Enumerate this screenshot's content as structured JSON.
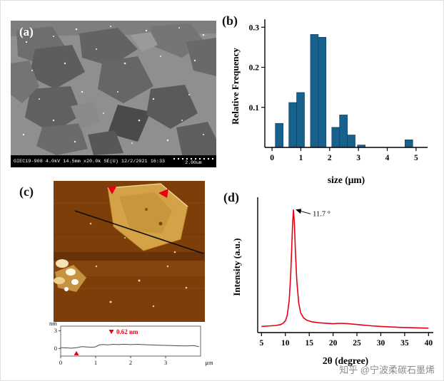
{
  "figure": {
    "panel_a": {
      "label": "(a)",
      "status_bar": "GIEC19-908 4.0kV 14.5mm x20.0k SE(U) 12/2/2021 16:33",
      "scale_label": "2.00um"
    },
    "panel_b": {
      "label": "(b)"
    },
    "panel_c": {
      "label": "(c)"
    },
    "panel_d": {
      "label": "(d)"
    },
    "watermark": "知乎 @宁波柔碳石墨烯"
  },
  "chart_data": [
    {
      "id": "size_histogram",
      "type": "bar",
      "panel": "b",
      "title": "",
      "xlabel": "size (μm)",
      "ylabel": "Relative Frequency",
      "centers": [
        0.25,
        0.72,
        0.99,
        1.47,
        1.74,
        2.21,
        2.48,
        2.75,
        3.1,
        4.75
      ],
      "values": [
        0.06,
        0.112,
        0.137,
        0.282,
        0.275,
        0.05,
        0.081,
        0.031,
        0.006,
        0.019
      ],
      "bar_width": 0.27,
      "xlim": [
        -0.25,
        5.4
      ],
      "ylim": [
        0,
        0.32
      ],
      "xticks": [
        0,
        1,
        2,
        3,
        4,
        5
      ],
      "yticks": [
        0.1,
        0.2,
        0.3
      ],
      "bar_color": "#17618c",
      "legend": "none",
      "grid": false
    },
    {
      "id": "height_profile",
      "type": "line",
      "panel": "c",
      "xlabel": "μm",
      "ylabel": "nm",
      "xticks": [
        0,
        1,
        2,
        3
      ],
      "yticks": [
        0,
        3
      ],
      "xlim": [
        0,
        4
      ],
      "ylim": [
        -1.3,
        3.8
      ],
      "line_color": "#4a4a4a",
      "annotation": "0.62 nm",
      "annotation_color": "#e60012",
      "x": [
        0,
        0.15,
        0.3,
        0.45,
        0.6,
        0.75,
        0.9,
        1.0,
        1.1,
        1.2,
        1.35,
        1.5,
        1.65,
        1.8,
        2.0,
        2.2,
        2.4,
        2.6,
        2.8,
        3.0,
        3.2,
        3.4,
        3.6,
        3.8,
        3.95
      ],
      "y": [
        0.15,
        0.1,
        0.05,
        0.12,
        0.3,
        0.25,
        0.2,
        0.28,
        0.6,
        0.68,
        0.62,
        0.7,
        0.65,
        0.72,
        0.66,
        0.7,
        0.64,
        0.6,
        0.55,
        0.52,
        0.5,
        0.45,
        0.42,
        0.5,
        0.3
      ],
      "grid": false
    },
    {
      "id": "xrd",
      "type": "line",
      "panel": "d",
      "xlabel": "2θ (degree)",
      "ylabel": "Intensity (a.u.)",
      "xticks": [
        5,
        10,
        15,
        20,
        25,
        30,
        35,
        40
      ],
      "xlim": [
        4.2,
        41
      ],
      "ylim": [
        0,
        1.1
      ],
      "line_color": "#e60012",
      "peak_2theta": 11.7,
      "annotation": "11.7 °",
      "x": [
        5,
        6,
        7,
        8,
        9,
        9.5,
        10,
        10.4,
        10.8,
        11.1,
        11.3,
        11.5,
        11.7,
        11.9,
        12.1,
        12.4,
        12.8,
        13.2,
        13.8,
        14.5,
        15.5,
        17,
        18.5,
        20,
        21.5,
        23,
        24.5,
        26,
        28,
        30,
        32,
        34,
        36,
        38,
        40
      ],
      "y": [
        0.05,
        0.052,
        0.055,
        0.058,
        0.065,
        0.075,
        0.095,
        0.14,
        0.26,
        0.45,
        0.66,
        0.87,
        1.0,
        0.88,
        0.66,
        0.42,
        0.24,
        0.16,
        0.12,
        0.1,
        0.088,
        0.08,
        0.076,
        0.072,
        0.075,
        0.073,
        0.068,
        0.062,
        0.055,
        0.05,
        0.046,
        0.042,
        0.04,
        0.038,
        0.036
      ],
      "grid": false
    }
  ]
}
